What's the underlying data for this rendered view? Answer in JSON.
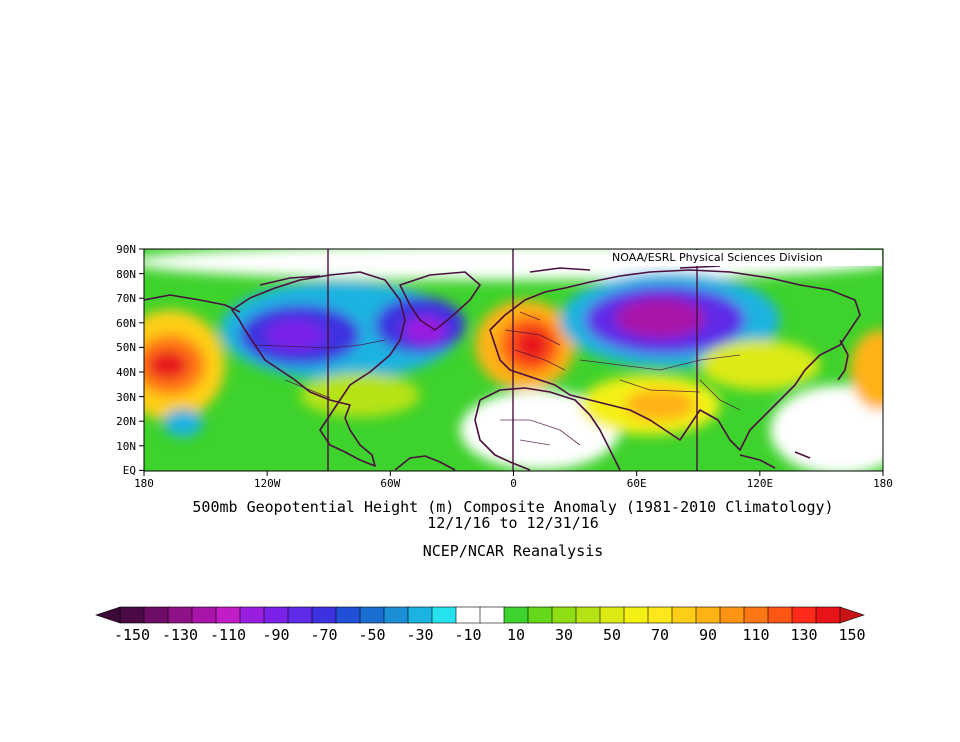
{
  "map": {
    "credit": "NOAA/ESRL Physical Sciences Division",
    "y_ticks": [
      "90N",
      "80N",
      "70N",
      "60N",
      "50N",
      "40N",
      "30N",
      "20N",
      "10N",
      "EQ"
    ],
    "x_ticks": [
      "180",
      "120W",
      "60W",
      "0",
      "60E",
      "120E",
      "180"
    ],
    "caption_line1": "500mb Geopotential Height (m) Composite Anomaly (1981-2010 Climatology)",
    "caption_line2": "12/1/16  to 12/31/16",
    "caption_line3": "NCEP/NCAR Reanalysis"
  },
  "colorbar": {
    "labels": [
      "-150",
      "-130",
      "-110",
      "-90",
      "-70",
      "-50",
      "-30",
      "-10",
      "10",
      "30",
      "50",
      "70",
      "90",
      "110",
      "130",
      "150"
    ],
    "colors": [
      "#4b0a45",
      "#6e0d66",
      "#8e1187",
      "#a815a8",
      "#c21bc8",
      "#9a1ee0",
      "#7a22e8",
      "#5e2be8",
      "#3c32e0",
      "#2050d8",
      "#1a6ed0",
      "#1d8ed8",
      "#1db3e0",
      "#26e2ef",
      "#ffffff",
      "#ffffff",
      "#3ed22c",
      "#66d81a",
      "#8ede14",
      "#b6e314",
      "#dcea14",
      "#f4f014",
      "#ffe81a",
      "#ffcf18",
      "#ffb214",
      "#ff9414",
      "#ff7614",
      "#ff5616",
      "#ff2a1a",
      "#e8141a"
    ],
    "arrow_low": "#3c0838",
    "arrow_high": "#c81414"
  },
  "map_colors": {
    "land": "#4a0f40",
    "ocean_background": "#3ed22c"
  }
}
